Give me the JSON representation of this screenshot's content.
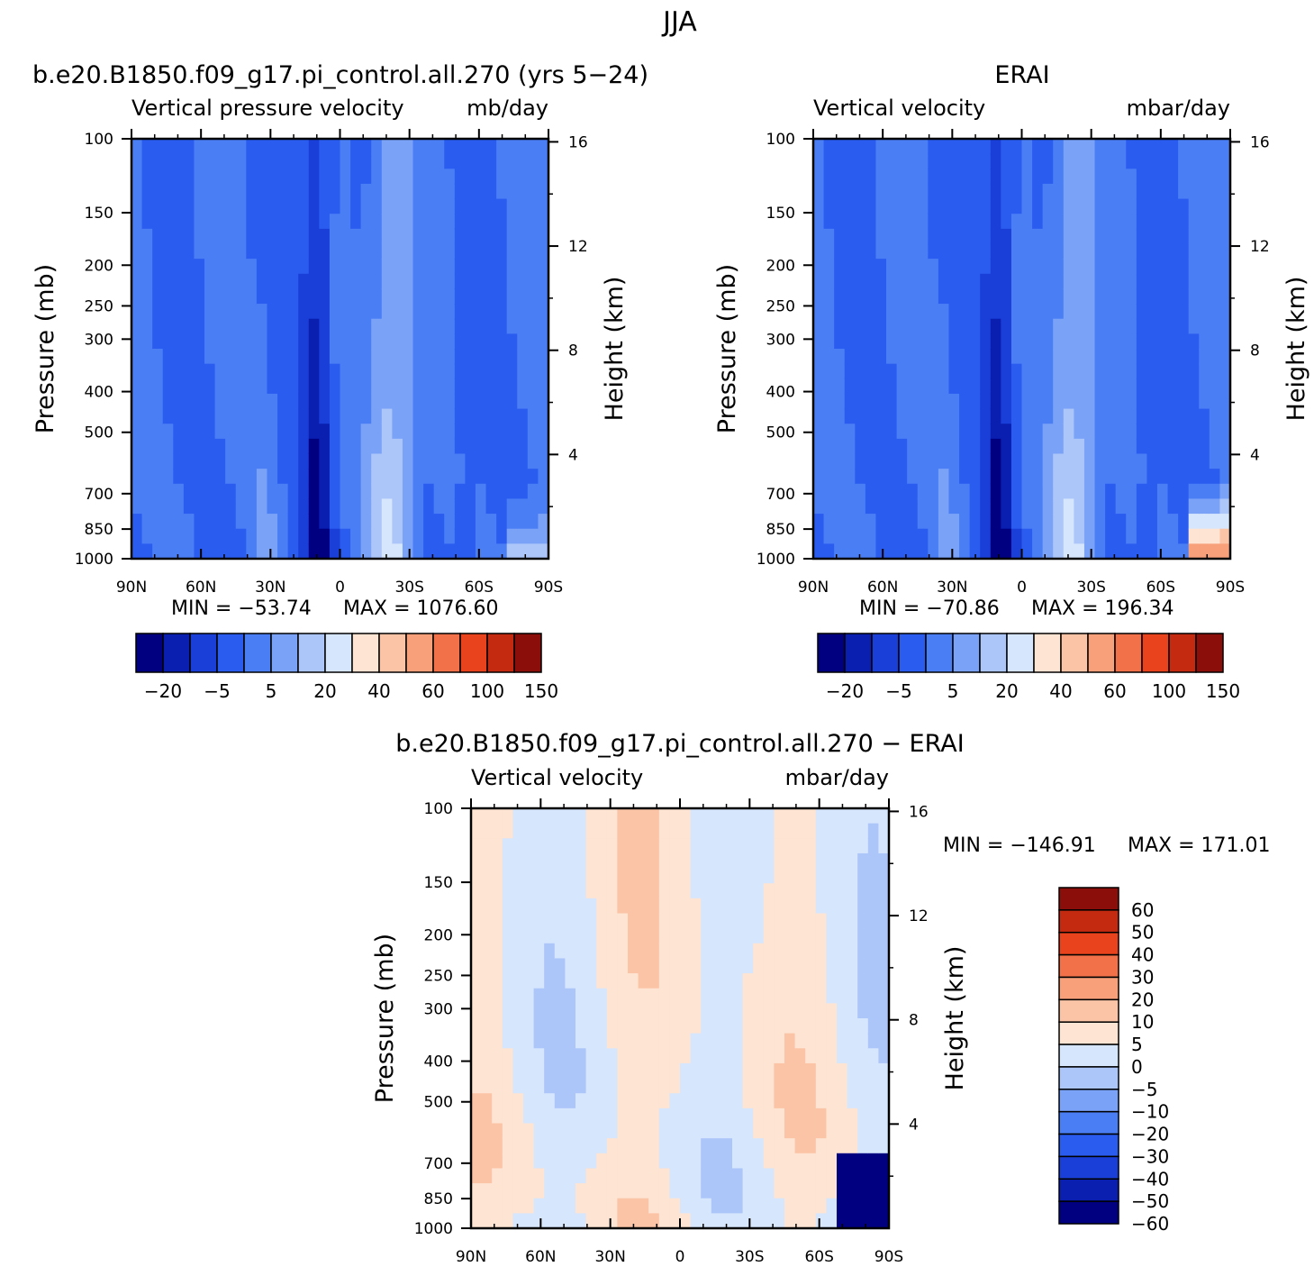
{
  "figure": {
    "title": "JJA"
  },
  "colors": {
    "model_scale": [
      "#000080",
      "#0a1fb0",
      "#1a3fd8",
      "#2b5cf0",
      "#4a7ef5",
      "#7aa2f7",
      "#adc6fa",
      "#d6e6fc",
      "#fde4d3",
      "#fbc4a6",
      "#f7a07a",
      "#f27148",
      "#e8431c",
      "#c42a0f",
      "#8b0e0b"
    ],
    "diff_scale": [
      "#000080",
      "#0a1fb0",
      "#1a3fd8",
      "#2b5cf0",
      "#4a7ef5",
      "#7aa2f7",
      "#adc6fa",
      "#d6e6fc",
      "#fde4d3",
      "#fbc4a6",
      "#f7a07a",
      "#f27148",
      "#e8431c",
      "#c42a0f",
      "#8b0e0b"
    ]
  },
  "chart_data": [
    {
      "id": "model",
      "type": "heatmap",
      "title": "b.e20.B1850.f09_g17.pi_control.all.270 (yrs 5−24)",
      "subtitle_left": "Vertical pressure velocity",
      "subtitle_right": "mb/day",
      "ylabel": "Pressure (mb)",
      "y2label": "Height (km)",
      "x_ticks": [
        "90N",
        "60N",
        "30N",
        "0",
        "30S",
        "60S",
        "90S"
      ],
      "x_values": [
        90,
        60,
        30,
        0,
        -30,
        -60,
        -90
      ],
      "y_ticks": [
        "100",
        "150",
        "200",
        "250",
        "300",
        "400",
        "500",
        "700",
        "850",
        "1000"
      ],
      "y_values": [
        100,
        150,
        200,
        250,
        300,
        400,
        500,
        700,
        850,
        1000
      ],
      "y2_ticks": [
        "16",
        "12",
        "8",
        "4"
      ],
      "y2_values": [
        16,
        12,
        8,
        4
      ],
      "min_label": "MIN = −53.74",
      "max_label": "MAX = 1076.60",
      "min": -53.74,
      "max": 1076.6,
      "colorbar_labels": [
        "−20",
        "−5",
        "5",
        "20",
        "40",
        "60",
        "100",
        "150"
      ]
    },
    {
      "id": "obs",
      "type": "heatmap",
      "title": "ERAI",
      "subtitle_left": "Vertical velocity",
      "subtitle_right": "mbar/day",
      "ylabel": "Pressure (mb)",
      "y2label": "Height (km)",
      "x_ticks": [
        "90N",
        "60N",
        "30N",
        "0",
        "30S",
        "60S",
        "90S"
      ],
      "x_values": [
        90,
        60,
        30,
        0,
        -30,
        -60,
        -90
      ],
      "y_ticks": [
        "100",
        "150",
        "200",
        "250",
        "300",
        "400",
        "500",
        "700",
        "850",
        "1000"
      ],
      "y_values": [
        100,
        150,
        200,
        250,
        300,
        400,
        500,
        700,
        850,
        1000
      ],
      "y2_ticks": [
        "16",
        "12",
        "8",
        "4"
      ],
      "y2_values": [
        16,
        12,
        8,
        4
      ],
      "min_label": "MIN = −70.86",
      "max_label": "MAX = 196.34",
      "min": -70.86,
      "max": 196.34,
      "colorbar_labels": [
        "−20",
        "−5",
        "5",
        "20",
        "40",
        "60",
        "100",
        "150"
      ]
    },
    {
      "id": "diff",
      "type": "heatmap",
      "title": "b.e20.B1850.f09_g17.pi_control.all.270 − ERAI",
      "subtitle_left": "Vertical velocity",
      "subtitle_right": "mbar/day",
      "ylabel": "Pressure (mb)",
      "y2label": "Height (km)",
      "x_ticks": [
        "90N",
        "60N",
        "30N",
        "0",
        "30S",
        "60S",
        "90S"
      ],
      "x_values": [
        90,
        60,
        30,
        0,
        -30,
        -60,
        -90
      ],
      "y_ticks": [
        "100",
        "150",
        "200",
        "250",
        "300",
        "400",
        "500",
        "700",
        "850",
        "1000"
      ],
      "y_values": [
        100,
        150,
        200,
        250,
        300,
        400,
        500,
        700,
        850,
        1000
      ],
      "y2_ticks": [
        "16",
        "12",
        "8",
        "4"
      ],
      "y2_values": [
        16,
        12,
        8,
        4
      ],
      "min_label": "MIN = −146.91",
      "max_label": "MAX = 171.01",
      "min": -146.91,
      "max": 171.01,
      "colorbar_labels": [
        "60",
        "50",
        "40",
        "30",
        "20",
        "10",
        "5",
        "0",
        "−5",
        "−10",
        "−20",
        "−30",
        "−40",
        "−50",
        "−60"
      ]
    }
  ]
}
